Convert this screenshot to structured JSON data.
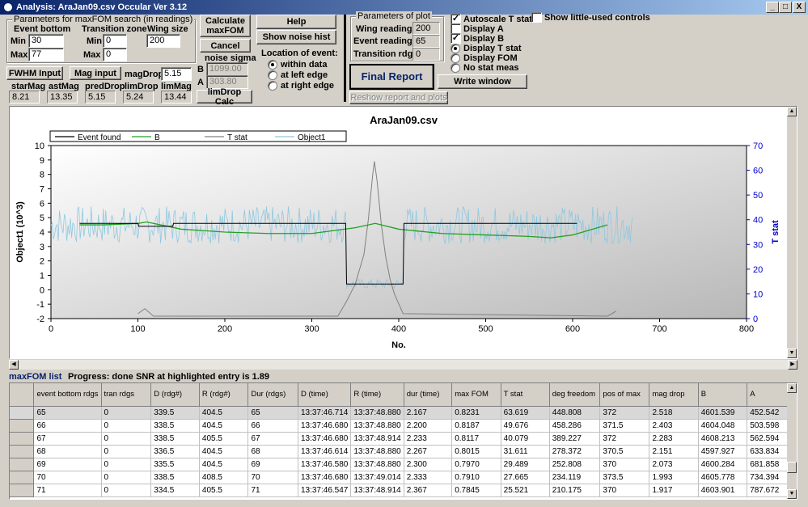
{
  "window": {
    "title": "Analysis: AraJan09.csv  Occular Ver 3.12",
    "controls": [
      "_",
      "□",
      "X"
    ]
  },
  "search": {
    "group_title": "Parameters for maxFOM search (in readings)",
    "event_bottom": "Event bottom",
    "transition_zone": "Transition zone",
    "wing_size": "Wing size",
    "min_label": "Min",
    "max_label": "Max",
    "event_min": "30",
    "event_max": "77",
    "trans_min": "0",
    "trans_max": "0",
    "wing_value": "200"
  },
  "buttons": {
    "calc_maxfom": "Calculate maxFOM",
    "cancel": "Cancel",
    "help": "Help",
    "show_noise": "Show noise hist",
    "fwhm": "FWHM Input",
    "mag_input": "Mag input",
    "limdrop_calc": "limDrop Calc",
    "final_report": "Final Report",
    "write_window": "Write window",
    "reshow": "Reshow report and plots"
  },
  "mag": {
    "magdrop_label": "magDrop:",
    "magdrop_value": "5.15",
    "star_label": "starMag",
    "ast_label": "astMag",
    "pred_label": "predDrop",
    "lim_label": "limDrop",
    "limmag_label": "limMag",
    "star": "8.21",
    "ast": "13.35",
    "pred": "5.15",
    "limdrop": "5.24",
    "limmag": "13.44"
  },
  "noise": {
    "title": "noise sigma",
    "b_label": "B",
    "a_label": "A",
    "b_value": "1099.00",
    "a_value": "303.80"
  },
  "location": {
    "title": "Location of event:",
    "options": [
      "within data",
      "at left edge",
      "at right edge"
    ],
    "selected": 0
  },
  "plotparams": {
    "title": "Parameters of plot",
    "wing_label": "Wing readings",
    "event_label": "Event readings",
    "trans_label": "Transition rdgs",
    "wing": "200",
    "event": "65",
    "trans": "0"
  },
  "display": {
    "autoscale": "Autoscale T stat",
    "show_little": "Show little-used controls",
    "display_a": "Display A",
    "display_b": "Display B",
    "radio": [
      "Display T stat",
      "Display FOM",
      "No stat meas"
    ],
    "autoscale_checked": true,
    "little_checked": false,
    "a_checked": false,
    "b_checked": true,
    "radio_selected": 0
  },
  "chart_data": {
    "type": "line",
    "title": "AraJan09.csv",
    "xlabel": "No.",
    "ylabel": "Object1 (10^3)",
    "y2label": "T stat",
    "xlim": [
      0,
      800
    ],
    "ylim": [
      -2,
      10
    ],
    "y2lim": [
      0,
      70
    ],
    "xticks": [
      0,
      100,
      200,
      300,
      400,
      500,
      600,
      700,
      800
    ],
    "yticks": [
      -2,
      -1,
      0,
      1,
      2,
      3,
      4,
      5,
      6,
      7,
      8,
      9,
      10
    ],
    "y2ticks": [
      0,
      10,
      20,
      30,
      40,
      50,
      60,
      70
    ],
    "legend": [
      "Event found",
      "B",
      "T stat",
      "Object1"
    ],
    "colors": {
      "event": "#000000",
      "b": "#22a022",
      "tstat": "#808080",
      "object": "#8fc8e0",
      "axis2": "#0000cc"
    },
    "series": [
      {
        "name": "Event found",
        "x": [
          33,
          100,
          101,
          140,
          141,
          339,
          340,
          405,
          406,
          605
        ],
        "y": [
          4.6,
          4.6,
          4.4,
          4.4,
          4.6,
          4.6,
          0.4,
          0.4,
          4.6,
          4.6
        ]
      },
      {
        "name": "B",
        "x": [
          33,
          60,
          100,
          110,
          150,
          200,
          250,
          300,
          350,
          373,
          400,
          450,
          500,
          550,
          575,
          600,
          640
        ],
        "y": [
          4.5,
          4.5,
          4.6,
          4.7,
          4.2,
          4.0,
          3.9,
          3.9,
          4.3,
          4.6,
          4.2,
          3.9,
          3.8,
          3.7,
          3.6,
          3.8,
          4.5
        ]
      },
      {
        "name": "T stat",
        "x": [
          100,
          108,
          118,
          330,
          340,
          350,
          360,
          365,
          370,
          372,
          375,
          380,
          385,
          390,
          395,
          400,
          405,
          640,
          650
        ],
        "y": [
          2,
          4,
          1,
          1,
          7,
          14,
          26,
          40,
          58,
          63.6,
          56,
          38,
          25,
          16,
          10,
          6,
          2,
          1,
          3
        ]
      },
      {
        "name": "Object1",
        "x": [
          0,
          670
        ],
        "y": [
          4.5,
          4.5
        ]
      }
    ]
  },
  "status": {
    "list_label": "maxFOM list",
    "progress": "Progress: done",
    "snr": "SNR at highlighted entry is 1.89"
  },
  "table": {
    "headers": [
      "event bottom rdgs",
      "tran rdgs",
      "D (rdg#)",
      "R (rdg#)",
      "Dur (rdgs)",
      "D (time)",
      "R (time)",
      "dur (time)",
      "max FOM",
      "T stat",
      "deg freedom",
      "pos of max",
      "mag drop",
      "B",
      "A"
    ],
    "rows": [
      [
        "65",
        "0",
        "339.5",
        "404.5",
        "65",
        "13:37:46.714",
        "13:37:48.880",
        "2.167",
        "0.8231",
        "63.619",
        "448.808",
        "372",
        "2.518",
        "4601.539",
        "452.542"
      ],
      [
        "66",
        "0",
        "338.5",
        "404.5",
        "66",
        "13:37:46.680",
        "13:37:48.880",
        "2.200",
        "0.8187",
        "49.676",
        "458.286",
        "371.5",
        "2.403",
        "4604.048",
        "503.598"
      ],
      [
        "67",
        "0",
        "338.5",
        "405.5",
        "67",
        "13:37:46.680",
        "13:37:48.914",
        "2.233",
        "0.8117",
        "40.079",
        "389.227",
        "372",
        "2.283",
        "4608.213",
        "562.594"
      ],
      [
        "68",
        "0",
        "336.5",
        "404.5",
        "68",
        "13:37:46.614",
        "13:37:48.880",
        "2.267",
        "0.8015",
        "31.611",
        "278.372",
        "370.5",
        "2.151",
        "4597.927",
        "633.834"
      ],
      [
        "69",
        "0",
        "335.5",
        "404.5",
        "69",
        "13:37:46.580",
        "13:37:48.880",
        "2.300",
        "0.7970",
        "29.489",
        "252.808",
        "370",
        "2.073",
        "4600.284",
        "681.858"
      ],
      [
        "70",
        "0",
        "338.5",
        "408.5",
        "70",
        "13:37:46.680",
        "13:37:49.014",
        "2.333",
        "0.7910",
        "27.665",
        "234.119",
        "373.5",
        "1.993",
        "4605.778",
        "734.394"
      ],
      [
        "71",
        "0",
        "334.5",
        "405.5",
        "71",
        "13:37:46.547",
        "13:37:48.914",
        "2.367",
        "0.7845",
        "25.521",
        "210.175",
        "370",
        "1.917",
        "4603.901",
        "787.672"
      ]
    ]
  }
}
